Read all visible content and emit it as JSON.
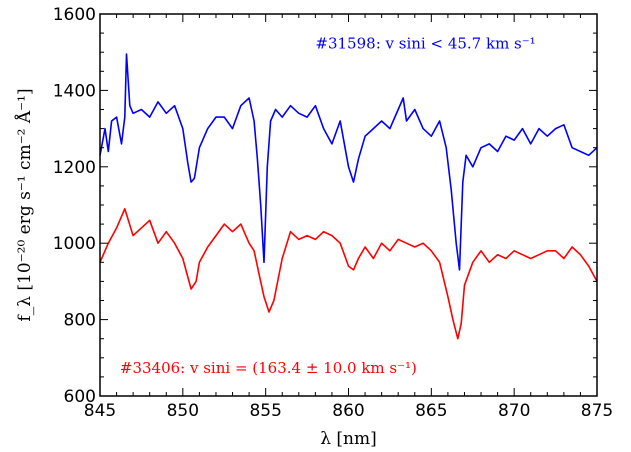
{
  "chart_data": {
    "type": "line",
    "title": "",
    "xlabel": "λ [nm]",
    "ylabel": "f_λ [10⁻²⁰ erg s⁻¹ cm⁻² Å⁻¹]",
    "xlim": [
      845,
      875
    ],
    "ylim": [
      600,
      1600
    ],
    "x_ticks": [
      845,
      850,
      855,
      860,
      865,
      870,
      875
    ],
    "y_ticks": [
      600,
      800,
      1000,
      1200,
      1400,
      1600
    ],
    "grid": false,
    "legend": "none",
    "series": [
      {
        "name": "#31598: v sini < 45.7 km s⁻¹",
        "color": "#0000ff",
        "x": [
          845.0,
          845.3,
          845.5,
          845.7,
          846.0,
          846.3,
          846.5,
          846.6,
          846.8,
          847.0,
          847.5,
          848.0,
          848.5,
          849.0,
          849.5,
          850.0,
          850.3,
          850.5,
          850.7,
          851.0,
          851.5,
          852.0,
          852.5,
          853.0,
          853.5,
          854.0,
          854.3,
          854.5,
          854.7,
          854.9,
          855.1,
          855.3,
          855.6,
          856.0,
          856.5,
          857.0,
          857.5,
          858.0,
          858.5,
          859.0,
          859.5,
          860.0,
          860.3,
          860.6,
          861.0,
          861.5,
          862.0,
          862.5,
          863.0,
          863.3,
          863.5,
          864.0,
          864.5,
          865.0,
          865.5,
          865.9,
          866.2,
          866.5,
          866.7,
          866.9,
          867.1,
          867.5,
          868.0,
          868.5,
          869.0,
          869.5,
          870.0,
          870.5,
          871.0,
          871.5,
          872.0,
          872.5,
          873.0,
          873.5,
          874.0,
          874.5,
          875.0
        ],
        "y": [
          1230,
          1300,
          1240,
          1320,
          1330,
          1260,
          1330,
          1495,
          1360,
          1340,
          1350,
          1330,
          1370,
          1340,
          1360,
          1300,
          1210,
          1160,
          1170,
          1250,
          1300,
          1330,
          1330,
          1300,
          1360,
          1380,
          1320,
          1220,
          1100,
          950,
          1200,
          1320,
          1350,
          1330,
          1360,
          1340,
          1330,
          1360,
          1300,
          1260,
          1320,
          1200,
          1160,
          1220,
          1280,
          1300,
          1320,
          1300,
          1350,
          1380,
          1320,
          1350,
          1300,
          1280,
          1320,
          1250,
          1140,
          1000,
          930,
          1160,
          1230,
          1200,
          1250,
          1260,
          1240,
          1280,
          1270,
          1300,
          1260,
          1300,
          1280,
          1300,
          1310,
          1250,
          1240,
          1230,
          1250
        ]
      },
      {
        "name": "#33406: v sini = (163.4 ± 10.0 km s⁻¹)",
        "color": "#ff0000",
        "x": [
          845.0,
          845.5,
          846.0,
          846.5,
          847.0,
          847.5,
          848.0,
          848.5,
          849.0,
          849.5,
          850.0,
          850.5,
          850.8,
          851.0,
          851.5,
          852.0,
          852.5,
          853.0,
          853.5,
          854.0,
          854.3,
          854.6,
          854.9,
          855.2,
          855.5,
          856.0,
          856.5,
          857.0,
          857.5,
          858.0,
          858.5,
          859.0,
          859.5,
          860.0,
          860.3,
          860.6,
          861.0,
          861.5,
          862.0,
          862.5,
          863.0,
          863.5,
          864.0,
          864.5,
          865.0,
          865.5,
          866.0,
          866.3,
          866.6,
          866.8,
          867.0,
          867.5,
          868.0,
          868.5,
          869.0,
          869.5,
          870.0,
          870.5,
          871.0,
          871.5,
          872.0,
          872.5,
          873.0,
          873.5,
          874.0,
          874.5,
          875.0
        ],
        "y": [
          950,
          1000,
          1040,
          1090,
          1020,
          1040,
          1060,
          1000,
          1030,
          1000,
          960,
          880,
          900,
          950,
          990,
          1020,
          1050,
          1030,
          1050,
          1000,
          980,
          920,
          860,
          820,
          850,
          960,
          1030,
          1010,
          1020,
          1010,
          1030,
          1020,
          1000,
          940,
          930,
          960,
          990,
          960,
          1000,
          980,
          1010,
          1000,
          990,
          1000,
          980,
          950,
          860,
          800,
          750,
          790,
          890,
          950,
          980,
          950,
          970,
          960,
          980,
          970,
          960,
          970,
          980,
          980,
          960,
          990,
          970,
          940,
          900
        ]
      }
    ],
    "annotations": [
      {
        "text": "#31598: v sini < 45.7 km s⁻¹",
        "color": "#0000ff"
      },
      {
        "text": "#33406: v sini = (163.4 ± 10.0 km s⁻¹)",
        "color": "#ff0000"
      }
    ]
  }
}
